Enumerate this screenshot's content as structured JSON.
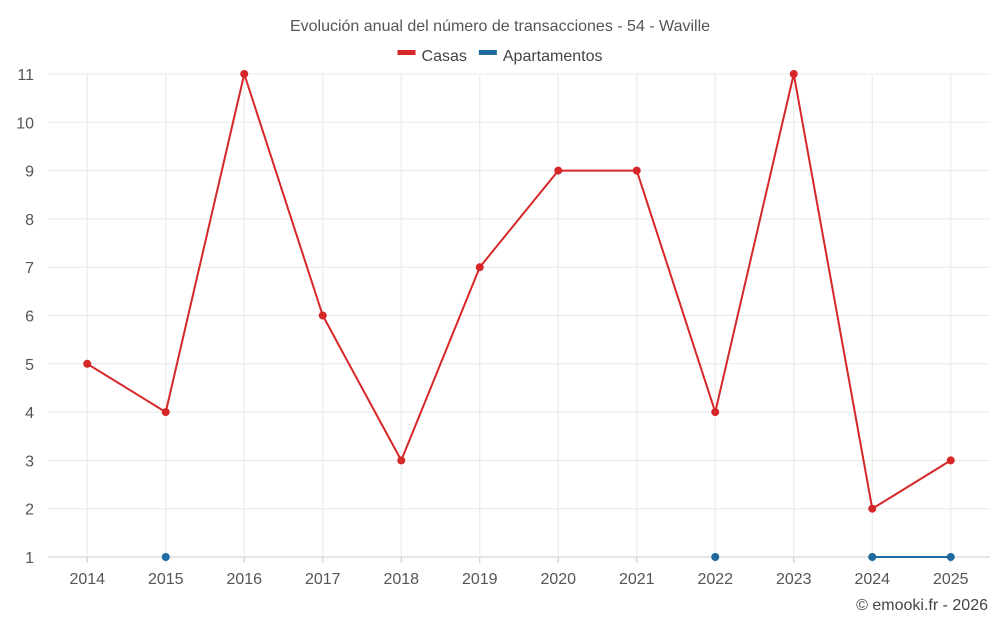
{
  "chart_data": {
    "type": "line",
    "title": "Evolución anual del número de transacciones - 54 - Waville",
    "x": [
      "2014",
      "2015",
      "2016",
      "2017",
      "2018",
      "2019",
      "2020",
      "2021",
      "2022",
      "2023",
      "2024",
      "2025"
    ],
    "yticks": [
      1,
      2,
      3,
      4,
      5,
      6,
      7,
      8,
      9,
      10,
      11
    ],
    "ylim": [
      1,
      11
    ],
    "grid": true,
    "legend_position": "top-center",
    "series": [
      {
        "name": "Casas",
        "color": "#d62728",
        "values": [
          5,
          4,
          11,
          6,
          3,
          7,
          9,
          9,
          4,
          11,
          2,
          3
        ]
      },
      {
        "name": "Apartamentos",
        "color": "#1f6a9e",
        "values": [
          null,
          1,
          null,
          null,
          null,
          null,
          null,
          null,
          1,
          null,
          1,
          1
        ]
      }
    ]
  },
  "credit": "© emooki.fr - 2026"
}
